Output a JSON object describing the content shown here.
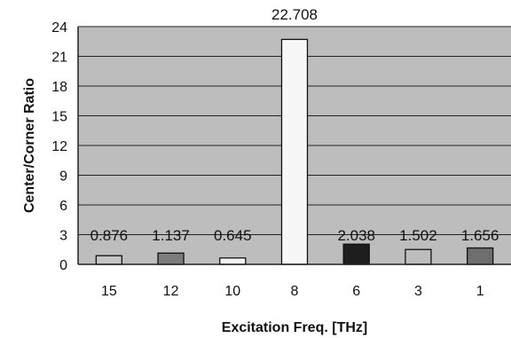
{
  "chart_data": {
    "type": "bar",
    "title": "",
    "xlabel": "Excitation Freq. [THz]",
    "ylabel": "Center/Corner Ratio",
    "categories": [
      "15",
      "12",
      "10",
      "8",
      "6",
      "3",
      "1"
    ],
    "values": [
      0.876,
      1.137,
      0.645,
      22.708,
      2.038,
      1.502,
      1.656
    ],
    "value_labels": [
      "0.876",
      "1.137",
      "0.645",
      "22.708",
      "2.038",
      "1.502",
      "1.656"
    ],
    "bar_colors": [
      "#c4c4c4",
      "#7c7c7c",
      "#f2f2f2",
      "#f7f7f7",
      "#1e1e1e",
      "#bdbdbd",
      "#6e6e6e"
    ],
    "ylim": [
      0,
      24
    ],
    "yticks": [
      0,
      3,
      6,
      9,
      12,
      15,
      18,
      21,
      24
    ],
    "grid": true,
    "legend": "none",
    "plot_background": "#bdbdbd"
  }
}
